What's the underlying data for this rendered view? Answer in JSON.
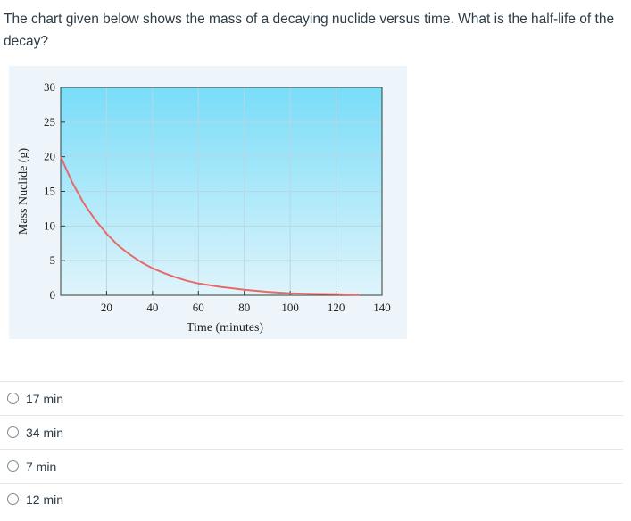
{
  "question": {
    "text": "The chart given below shows the mass of a decaying nuclide versus time. What is the half-life of the decay?"
  },
  "chart_data": {
    "type": "line",
    "title": "",
    "xlabel": "Time (minutes)",
    "ylabel": "Mass Nuclide (g)",
    "xlim": [
      0,
      140
    ],
    "ylim": [
      0,
      30
    ],
    "x_ticks": [
      "20",
      "40",
      "60",
      "80",
      "100",
      "120",
      "140"
    ],
    "y_ticks": [
      "0",
      "5",
      "10",
      "15",
      "20",
      "25",
      "30"
    ],
    "grid": true,
    "legend": "none",
    "series": [
      {
        "color": "#e8696b",
        "x": [
          0,
          5,
          10,
          15,
          20,
          25,
          30,
          35,
          40,
          45,
          50,
          55,
          60,
          70,
          80,
          90,
          100,
          110,
          120,
          130
        ],
        "y": [
          20.0,
          16.3,
          13.3,
          10.9,
          8.9,
          7.2,
          5.9,
          4.8,
          3.9,
          3.2,
          2.6,
          2.1,
          1.7,
          1.2,
          0.8,
          0.5,
          0.3,
          0.2,
          0.15,
          0.1
        ]
      }
    ],
    "colors": {
      "plot_top": "#79ddf8",
      "plot_bottom": "#dff4fb",
      "panel_bg": "#eef5fa",
      "grid": "#b9d6e4",
      "axis": "#3a3a3a"
    }
  },
  "answers": [
    {
      "label": "17 min"
    },
    {
      "label": "34 min"
    },
    {
      "label": "7 min"
    },
    {
      "label": "12 min"
    }
  ]
}
